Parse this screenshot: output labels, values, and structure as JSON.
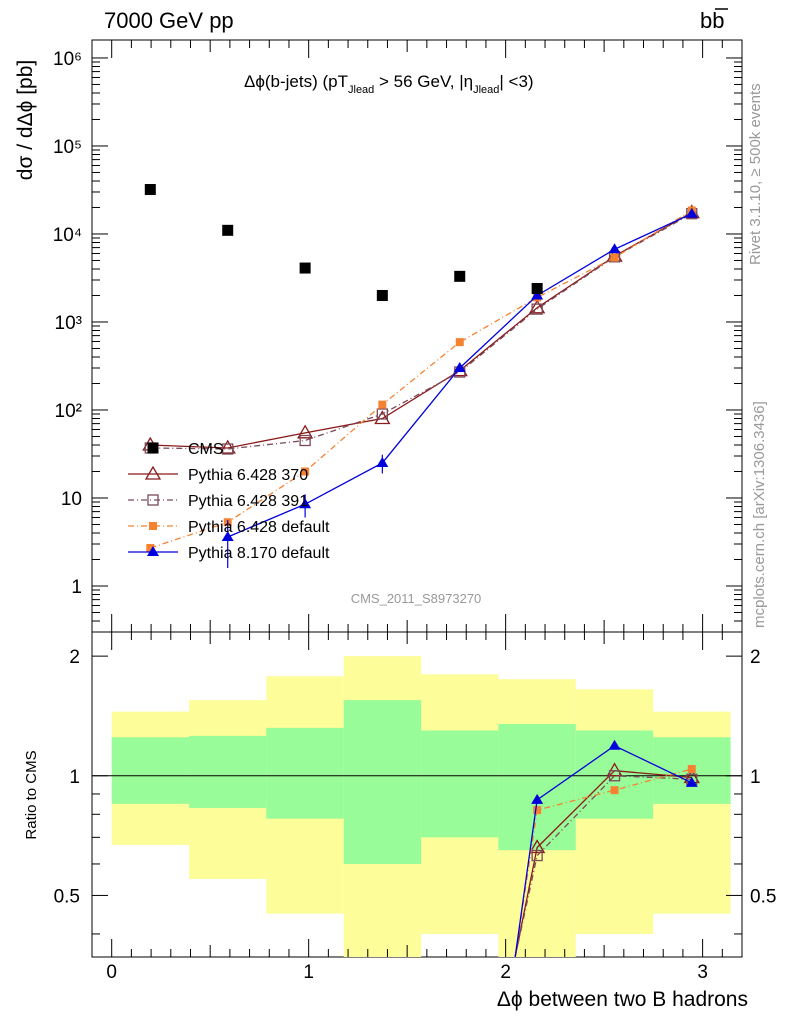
{
  "header": {
    "energy_label": "7000 GeV pp",
    "process_label": "bb",
    "side_label_top": "Rivet 3.1.10, ≥ 500k events",
    "side_label_bottom": "mcplots.cern.ch [arXiv:1306.3436]"
  },
  "top_panel": {
    "ylabel": "dσ / dΔϕ [pb]",
    "title_main": "Δϕ(b-jets) (pT",
    "title_sub1": "Jlead",
    "title_mid": " >  56 GeV, |η",
    "title_sub2": "Jlead",
    "title_end": "| <3)",
    "watermark": "CMS_2011_S8973270",
    "ytick_labels": [
      "1",
      "10",
      "10²",
      "10³",
      "10⁴",
      "10⁵",
      "10⁶"
    ]
  },
  "bottom_panel": {
    "ylabel": "Ratio to CMS",
    "xlabel": "Δϕ between two B hadrons",
    "ytick_labels": [
      "0.5",
      "1",
      "2"
    ],
    "xtick_labels": [
      "0",
      "1",
      "2",
      "3"
    ]
  },
  "colors": {
    "cms": "#000000",
    "p370": "#8b1a1a",
    "p391": "#7a4a5a",
    "p6def": "#f58231",
    "p8def": "#0000dd",
    "band_inner": "#98fc98",
    "band_outer": "#fdfd99"
  },
  "chart_data": {
    "type": "scatter",
    "x": [
      0.196,
      0.589,
      0.982,
      1.374,
      1.767,
      2.16,
      2.553,
      2.945
    ],
    "x_bin_edges": [
      0.0,
      0.393,
      0.785,
      1.178,
      1.571,
      1.963,
      2.356,
      2.749,
      3.142
    ],
    "xlim": [
      -0.1,
      3.2
    ],
    "ylim": [
      0.3,
      1600000
    ],
    "yscale": "log",
    "ratio_ylim": [
      0.35,
      2.3
    ],
    "ratio_yscale": "log",
    "series": [
      {
        "name": "CMS",
        "marker": "square-filled",
        "values": [
          32000,
          11000,
          4100,
          2000,
          3300,
          2400,
          null,
          null
        ],
        "ratio_band_inner": [
          [
            0.85,
            1.25
          ],
          [
            0.83,
            1.26
          ],
          [
            0.78,
            1.32
          ],
          [
            0.6,
            1.55
          ],
          [
            0.7,
            1.3
          ],
          [
            0.65,
            1.35
          ],
          [
            0.78,
            1.3
          ],
          [
            0.85,
            1.25
          ]
        ],
        "ratio_band_outer": [
          [
            0.67,
            1.45
          ],
          [
            0.55,
            1.55
          ],
          [
            0.45,
            1.78
          ],
          [
            0.3,
            2.0
          ],
          [
            0.4,
            1.8
          ],
          [
            0.3,
            1.75
          ],
          [
            0.4,
            1.65
          ],
          [
            0.45,
            1.45
          ]
        ]
      },
      {
        "name": "Pythia 6.428 370",
        "marker": "triangle-open",
        "values": [
          40,
          37,
          55,
          80,
          280,
          1450,
          5600,
          17500
        ],
        "ratio": [
          null,
          null,
          null,
          null,
          null,
          0.66,
          1.03,
          0.99
        ]
      },
      {
        "name": "Pythia 6.428 391",
        "marker": "square-open",
        "values": [
          37,
          36,
          45,
          90,
          270,
          1400,
          5500,
          17000
        ],
        "ratio": [
          null,
          null,
          null,
          null,
          null,
          0.63,
          1.0,
          0.98
        ]
      },
      {
        "name": "Pythia 6.428 default",
        "marker": "square-filled-small",
        "values": [
          2.7,
          5.3,
          20,
          115,
          590,
          1900,
          5400,
          18500
        ],
        "ratio": [
          null,
          null,
          null,
          null,
          null,
          0.82,
          0.92,
          1.04
        ]
      },
      {
        "name": "Pythia 8.170 default",
        "marker": "triangle-filled",
        "values": [
          null,
          3.6,
          8.5,
          25,
          300,
          2000,
          6700,
          17000
        ],
        "yerr": [
          0,
          2.0,
          2.5,
          6,
          0,
          0,
          0,
          0
        ],
        "ratio": [
          null,
          null,
          null,
          null,
          null,
          0.87,
          1.19,
          0.96
        ]
      }
    ]
  }
}
